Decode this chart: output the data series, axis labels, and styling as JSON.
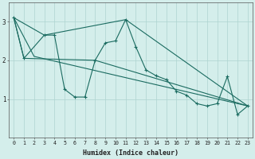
{
  "xlabel": "Humidex (Indice chaleur)",
  "xlim": [
    -0.5,
    23.5
  ],
  "ylim": [
    0.0,
    3.5
  ],
  "yticks": [
    1,
    2,
    3
  ],
  "xticks": [
    0,
    1,
    2,
    3,
    4,
    5,
    6,
    7,
    8,
    9,
    10,
    11,
    12,
    13,
    14,
    15,
    16,
    17,
    18,
    19,
    20,
    21,
    22,
    23
  ],
  "bg_color": "#d4eeeb",
  "line_color": "#1a6b60",
  "grid_color": "#aed4d0",
  "lines": [
    {
      "x": [
        0,
        1,
        3,
        4,
        5,
        6,
        7,
        8,
        9,
        10,
        11,
        12,
        13,
        14,
        15,
        16,
        17,
        18,
        19,
        20,
        21,
        22,
        23
      ],
      "y": [
        3.1,
        2.05,
        2.65,
        2.65,
        1.25,
        1.05,
        1.05,
        2.0,
        2.45,
        2.5,
        3.05,
        2.35,
        1.75,
        1.6,
        1.5,
        1.2,
        1.1,
        0.88,
        0.82,
        0.88,
        1.58,
        0.6,
        0.82
      ],
      "marker": true
    },
    {
      "x": [
        0,
        3,
        11,
        23
      ],
      "y": [
        3.1,
        2.65,
        3.05,
        0.82
      ],
      "marker": false
    },
    {
      "x": [
        0,
        1,
        8,
        23
      ],
      "y": [
        3.1,
        2.05,
        2.0,
        0.82
      ],
      "marker": false
    },
    {
      "x": [
        0,
        2,
        23
      ],
      "y": [
        3.1,
        2.1,
        0.82
      ],
      "marker": false
    }
  ]
}
